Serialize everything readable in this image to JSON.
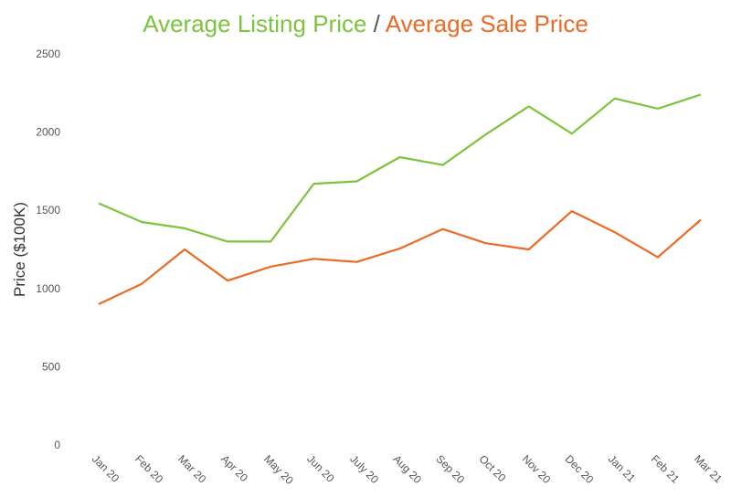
{
  "chart_data": {
    "type": "line",
    "title_parts": [
      {
        "text": "Average Listing Price",
        "color": "#7cc43c"
      },
      {
        "text": " / ",
        "color": "#555555"
      },
      {
        "text": "Average Sale Price",
        "color": "#ec6a25"
      }
    ],
    "title": "Average Listing Price / Average Sale Price",
    "xlabel": "",
    "ylabel": "Price ($100K)",
    "ylim": [
      0,
      2500
    ],
    "yticks": [
      0,
      500,
      1000,
      1500,
      2000,
      2500
    ],
    "categories": [
      "Jan 20",
      "Feb 20",
      "Mar 20",
      "Apr 20",
      "May 20",
      "Jun 20",
      "July 20",
      "Aug 20",
      "Sep 20",
      "Oct 20",
      "Nov 20",
      "Dec 20",
      "Jan 21",
      "Feb 21",
      "Mar 21"
    ],
    "grid": false,
    "legend": "none",
    "series": [
      {
        "name": "Average Listing Price",
        "color": "#7cc43c",
        "values": [
          1545,
          1425,
          1385,
          1300,
          1300,
          1670,
          1685,
          1840,
          1790,
          1985,
          2165,
          1990,
          2215,
          2150,
          2240
        ]
      },
      {
        "name": "Average Sale Price",
        "color": "#ec6a25",
        "values": [
          900,
          1030,
          1250,
          1050,
          1140,
          1190,
          1170,
          1255,
          1380,
          1290,
          1250,
          1495,
          1360,
          1200,
          1440
        ]
      }
    ]
  }
}
